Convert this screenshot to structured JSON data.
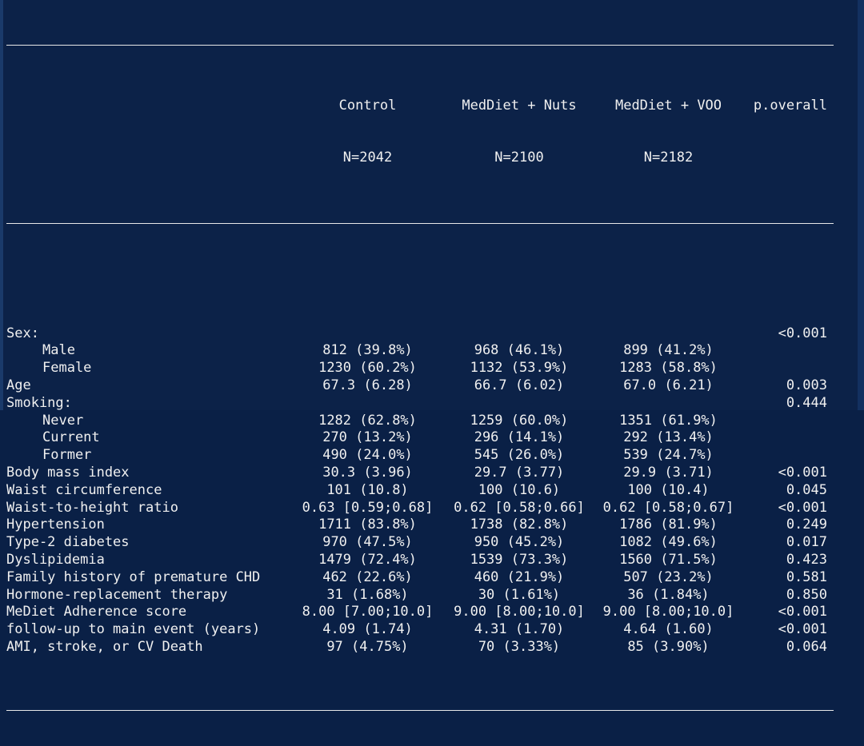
{
  "table": {
    "headers": {
      "group1_name": "Control",
      "group1_n": "N=2042",
      "group2_name": "MedDiet + Nuts",
      "group2_n": "N=2100",
      "group3_name": "MedDiet + VOO",
      "group3_n": "N=2182",
      "p_label": "p.overall"
    },
    "rows": [
      {
        "label": "Sex:",
        "indent": false,
        "c1": "",
        "c2": "",
        "c3": "",
        "p": "<0.001"
      },
      {
        "label": "Male",
        "indent": true,
        "c1": "812 (39.8%)",
        "c2": "968 (46.1%)",
        "c3": "899 (41.2%)",
        "p": ""
      },
      {
        "label": "Female",
        "indent": true,
        "c1": "1230 (60.2%)",
        "c2": "1132 (53.9%)",
        "c3": "1283 (58.8%)",
        "p": ""
      },
      {
        "label": "Age",
        "indent": false,
        "c1": "67.3 (6.28)",
        "c2": "66.7 (6.02)",
        "c3": "67.0 (6.21)",
        "p": "0.003"
      },
      {
        "label": "Smoking:",
        "indent": false,
        "c1": "",
        "c2": "",
        "c3": "",
        "p": "0.444"
      },
      {
        "label": "Never",
        "indent": true,
        "c1": "1282 (62.8%)",
        "c2": "1259 (60.0%)",
        "c3": "1351 (61.9%)",
        "p": ""
      },
      {
        "label": "Current",
        "indent": true,
        "c1": "270 (13.2%)",
        "c2": "296 (14.1%)",
        "c3": "292 (13.4%)",
        "p": ""
      },
      {
        "label": "Former",
        "indent": true,
        "c1": "490 (24.0%)",
        "c2": "545 (26.0%)",
        "c3": "539 (24.7%)",
        "p": ""
      },
      {
        "label": "Body mass index",
        "indent": false,
        "c1": "30.3 (3.96)",
        "c2": "29.7 (3.77)",
        "c3": "29.9 (3.71)",
        "p": "<0.001"
      },
      {
        "label": "Waist circumference",
        "indent": false,
        "c1": "101 (10.8)",
        "c2": "100 (10.6)",
        "c3": "100 (10.4)",
        "p": "0.045"
      },
      {
        "label": "Waist-to-height ratio",
        "indent": false,
        "c1": "0.63 [0.59;0.68]",
        "c2": "0.62 [0.58;0.66]",
        "c3": "0.62 [0.58;0.67]",
        "p": "<0.001"
      },
      {
        "label": "Hypertension",
        "indent": false,
        "c1": "1711 (83.8%)",
        "c2": "1738 (82.8%)",
        "c3": "1786 (81.9%)",
        "p": "0.249"
      },
      {
        "label": "Type-2 diabetes",
        "indent": false,
        "c1": "970 (47.5%)",
        "c2": "950 (45.2%)",
        "c3": "1082 (49.6%)",
        "p": "0.017"
      },
      {
        "label": "Dyslipidemia",
        "indent": false,
        "c1": "1479 (72.4%)",
        "c2": "1539 (73.3%)",
        "c3": "1560 (71.5%)",
        "p": "0.423"
      },
      {
        "label": "Family history of premature CHD",
        "indent": false,
        "c1": "462 (22.6%)",
        "c2": "460 (21.9%)",
        "c3": "507 (23.2%)",
        "p": "0.581"
      },
      {
        "label": "Hormone-replacement therapy",
        "indent": false,
        "c1": "31 (1.68%)",
        "c2": "30 (1.61%)",
        "c3": "36 (1.84%)",
        "p": "0.850"
      },
      {
        "label": "MeDiet Adherence score",
        "indent": false,
        "c1": "8.00 [7.00;10.0]",
        "c2": "9.00 [8.00;10.0]",
        "c3": "9.00 [8.00;10.0]",
        "p": "<0.001"
      },
      {
        "label": "follow-up to main event (years)",
        "indent": false,
        "c1": "4.09 (1.74)",
        "c2": "4.31 (1.70)",
        "c3": "4.64 (1.60)",
        "p": "<0.001"
      },
      {
        "label": "AMI, stroke, or CV Death",
        "indent": false,
        "c1": "97 (4.75%)",
        "c2": "70 (3.33%)",
        "c3": "85 (3.90%)",
        "p": "0.064"
      }
    ]
  }
}
